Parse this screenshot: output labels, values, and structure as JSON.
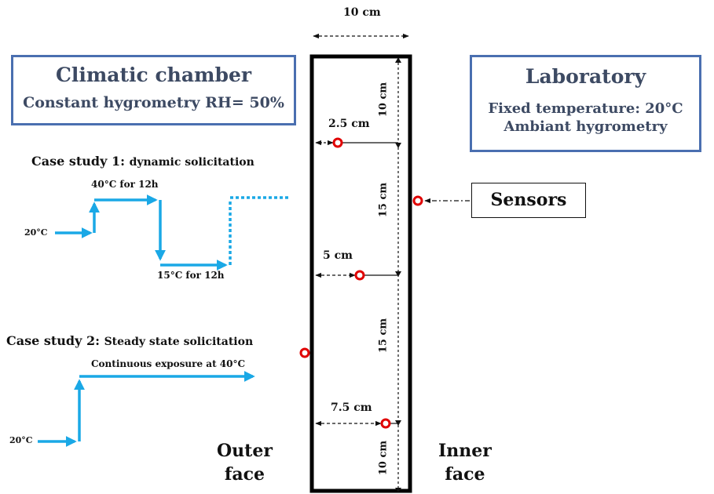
{
  "wall": {
    "width_label": "10 cm",
    "seg1_label": "10 cm",
    "seg2_label": "15 cm",
    "seg3_label": "15 cm",
    "seg4_label": "10 cm",
    "depth1_label": "2.5 cm",
    "depth2_label": "5 cm",
    "depth3_label": "7.5 cm",
    "outer_face_label": "Outer\nface",
    "inner_face_label": "Inner\nface"
  },
  "climatic_chamber": {
    "title": "Climatic chamber",
    "subtitle": "Constant hygrometry RH= 50%"
  },
  "laboratory": {
    "title": "Laboratory",
    "line1": "Fixed temperature: 20°C",
    "line2": "Ambiant hygrometry"
  },
  "sensors_label": "Sensors",
  "case1": {
    "title_bold": "Case study 1:",
    "title_rest": "dynamic solicitation",
    "start_temp": "20°C",
    "high_label": "40°C for 12h",
    "low_label": "15°C for 12h"
  },
  "case2": {
    "title_bold": "Case study 2:",
    "title_rest": "Steady state solicitation",
    "start_temp": "20°C",
    "exposure_label": "Continuous exposure at 40°C"
  },
  "colors": {
    "arrow_blue": "#1aa8e6",
    "sensor_red": "#e00000",
    "box_border": "#4a6fb0",
    "box_text": "#3d4a63"
  }
}
